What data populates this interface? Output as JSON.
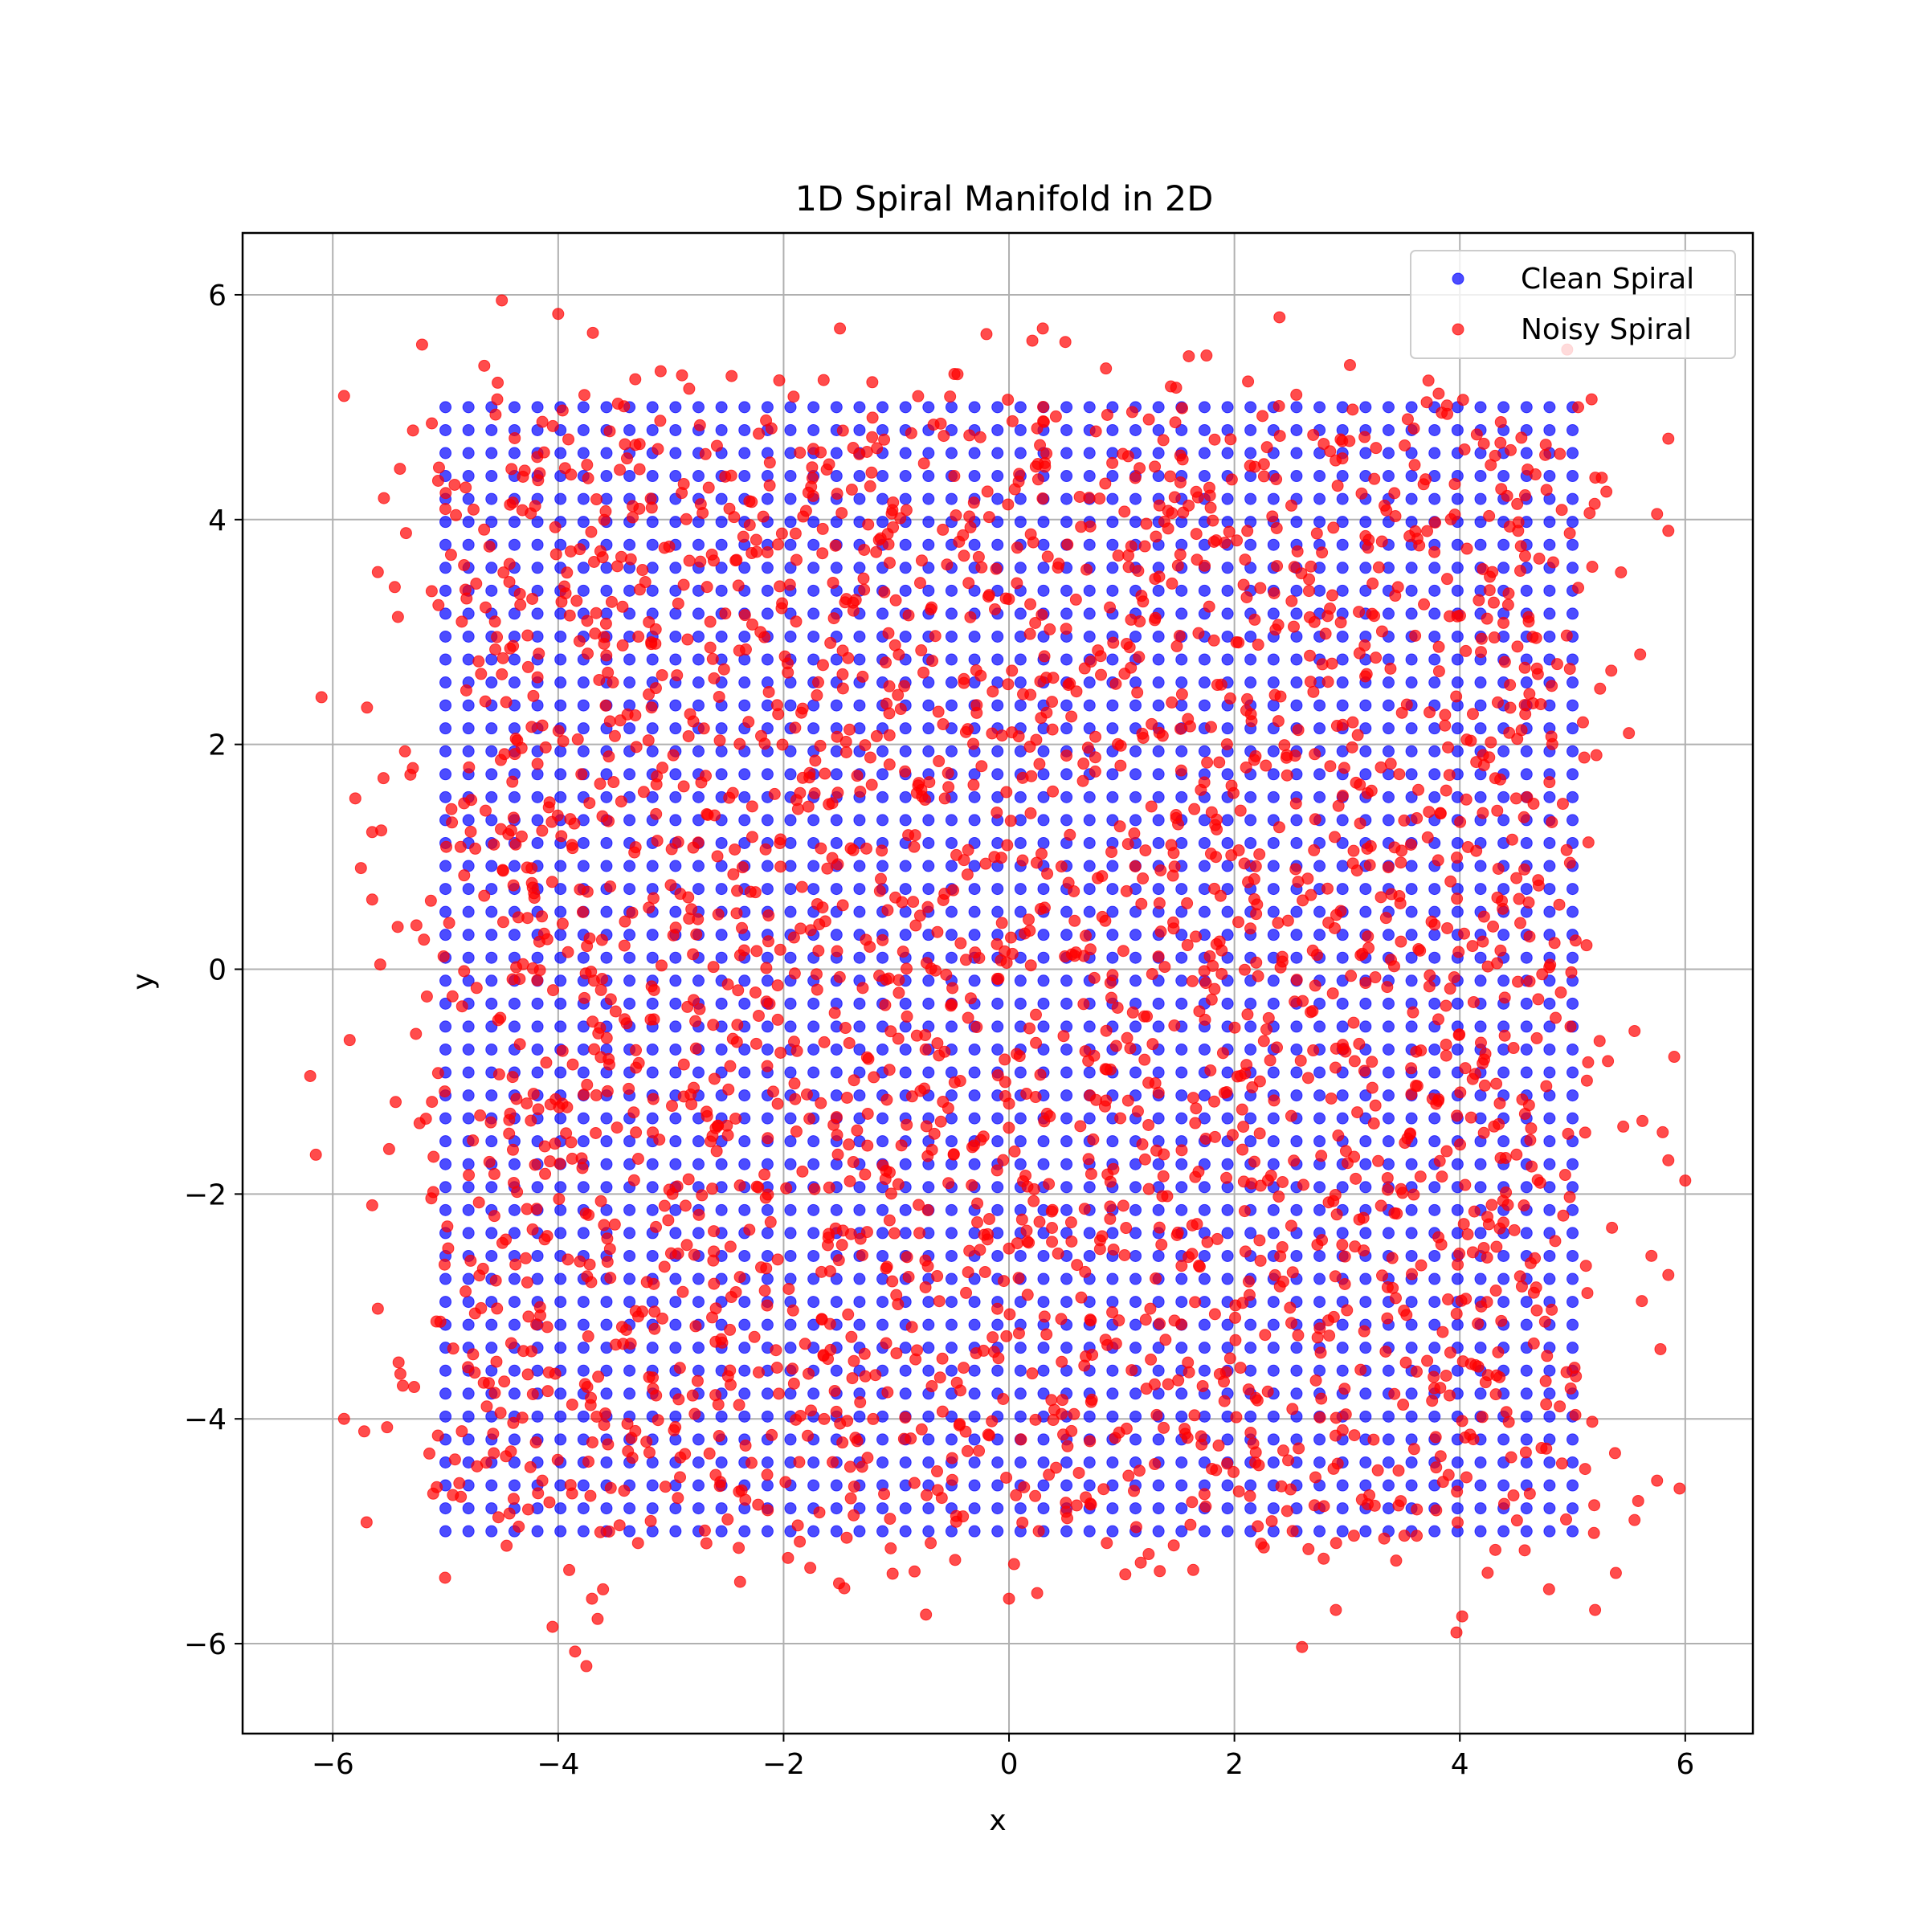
{
  "chart_data": {
    "type": "scatter",
    "title": "1D Spiral Manifold in 2D",
    "xlabel": "x",
    "ylabel": "y",
    "xlim": [
      -6.8,
      6.6
    ],
    "ylim": [
      -6.8,
      6.55
    ],
    "xticks": [
      -6,
      -4,
      -2,
      0,
      2,
      4,
      6
    ],
    "yticks": [
      -6,
      -4,
      -2,
      0,
      2,
      4,
      6
    ],
    "xtick_labels": [
      "−6",
      "−4",
      "−2",
      "0",
      "2",
      "4",
      "6"
    ],
    "ytick_labels": [
      "−6",
      "−4",
      "−2",
      "0",
      "2",
      "4",
      "6"
    ],
    "grid": true,
    "legend_position": "top-right",
    "series": [
      {
        "name": "Clean Spiral",
        "color": "#0000ff",
        "marker": "circle",
        "alpha": 0.7,
        "grid_x_range": [
          -5.0,
          5.0
        ],
        "grid_y_range": [
          -5.0,
          5.0
        ],
        "grid_count_x": 50,
        "grid_count_y": 50
      },
      {
        "name": "Noisy Spiral",
        "color": "#ff0000",
        "marker": "circle",
        "alpha": 0.7,
        "noise_std": 0.5,
        "outliers": [
          [
            -6.2,
            -0.95
          ],
          [
            -6.15,
            -1.65
          ],
          [
            -6.1,
            2.42
          ],
          [
            -5.9,
            5.1
          ],
          [
            -5.85,
            -0.63
          ],
          [
            -5.9,
            -4.0
          ],
          [
            -5.7,
            -4.92
          ],
          [
            -5.75,
            0.9
          ],
          [
            -5.8,
            1.52
          ],
          [
            -5.65,
            1.22
          ],
          [
            -5.65,
            0.62
          ],
          [
            -5.6,
            -3.02
          ],
          [
            -5.55,
            1.7
          ],
          [
            -5.5,
            -1.6
          ],
          [
            -5.65,
            -2.1
          ],
          [
            -5.45,
            3.4
          ],
          [
            -5.4,
            -3.6
          ],
          [
            -5.35,
            3.88
          ],
          [
            -4.5,
            5.95
          ],
          [
            -4.0,
            5.83
          ],
          [
            -3.7,
            -5.6
          ],
          [
            -3.75,
            -6.2
          ],
          [
            -3.85,
            -6.07
          ],
          [
            -4.05,
            -5.85
          ],
          [
            -3.65,
            -5.78
          ],
          [
            -1.5,
            5.7
          ],
          [
            0.3,
            5.7
          ],
          [
            0.5,
            5.58
          ],
          [
            -0.2,
            5.65
          ],
          [
            2.4,
            5.8
          ],
          [
            2.6,
            -6.03
          ],
          [
            2.9,
            -5.7
          ],
          [
            3.97,
            -5.9
          ],
          [
            5.2,
            -5.7
          ],
          [
            5.55,
            -4.9
          ],
          [
            5.75,
            -4.55
          ],
          [
            5.95,
            -4.62
          ],
          [
            6.0,
            -1.88
          ],
          [
            5.85,
            4.72
          ],
          [
            5.75,
            4.05
          ],
          [
            5.85,
            3.9
          ],
          [
            5.6,
            2.8
          ],
          [
            5.5,
            2.1
          ],
          [
            5.35,
            -2.3
          ],
          [
            5.55,
            -0.55
          ],
          [
            5.8,
            -1.45
          ],
          [
            5.85,
            -1.7
          ],
          [
            5.78,
            -3.38
          ],
          [
            5.7,
            -2.55
          ],
          [
            5.85,
            -2.72
          ],
          [
            5.62,
            -1.35
          ],
          [
            5.45,
            -1.4
          ],
          [
            5.05,
            5.0
          ],
          [
            0.0,
            -5.6
          ],
          [
            0.25,
            -5.55
          ]
        ]
      }
    ]
  }
}
